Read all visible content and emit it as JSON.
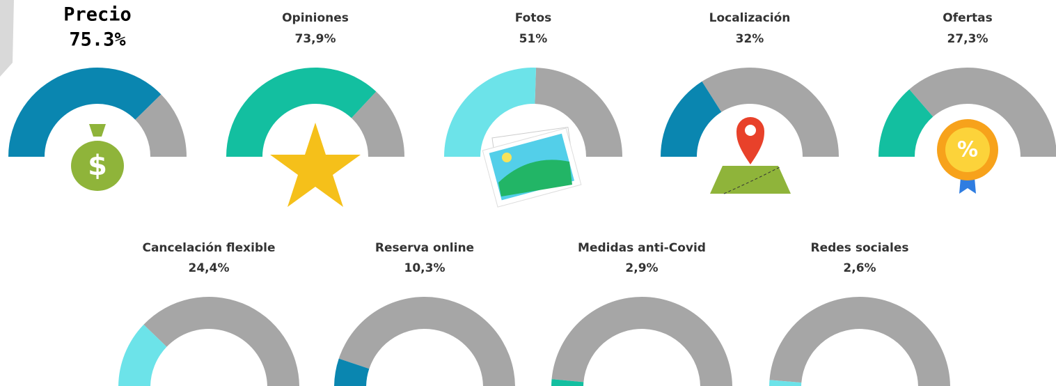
{
  "chart_data": [
    {
      "type": "gauge",
      "title": "Precio",
      "values": [
        75.3
      ],
      "value_labels": [
        "75.3%"
      ],
      "color": "#0a86b0",
      "track_color": "#a6a6a6",
      "ylim": [
        0,
        100
      ]
    },
    {
      "type": "gauge",
      "title": "Opiniones",
      "values": [
        73.9
      ],
      "value_labels": [
        "73,9%"
      ],
      "color": "#13bfa0",
      "track_color": "#a6a6a6",
      "ylim": [
        0,
        100
      ]
    },
    {
      "type": "gauge",
      "title": "Fotos",
      "values": [
        51
      ],
      "value_labels": [
        "51%"
      ],
      "color": "#6ce3e9",
      "track_color": "#a6a6a6",
      "ylim": [
        0,
        100
      ]
    },
    {
      "type": "gauge",
      "title": "Localización",
      "values": [
        32
      ],
      "value_labels": [
        "32%"
      ],
      "color": "#0a86b0",
      "track_color": "#a6a6a6",
      "ylim": [
        0,
        100
      ]
    },
    {
      "type": "gauge",
      "title": "Ofertas",
      "values": [
        27.3
      ],
      "value_labels": [
        "27,3%"
      ],
      "color": "#13bfa0",
      "track_color": "#a6a6a6",
      "ylim": [
        0,
        100
      ]
    },
    {
      "type": "gauge",
      "title": "Cancelación flexible",
      "values": [
        24.4
      ],
      "value_labels": [
        "24,4%"
      ],
      "color": "#6ce3e9",
      "track_color": "#a6a6a6",
      "ylim": [
        0,
        100
      ]
    },
    {
      "type": "gauge",
      "title": "Reserva online",
      "values": [
        10.3
      ],
      "value_labels": [
        "10,3%"
      ],
      "color": "#0a86b0",
      "track_color": "#a6a6a6",
      "ylim": [
        0,
        100
      ]
    },
    {
      "type": "gauge",
      "title": "Medidas anti-Covid",
      "values": [
        2.9
      ],
      "value_labels": [
        "2,9%"
      ],
      "color": "#13bfa0",
      "track_color": "#a6a6a6",
      "ylim": [
        0,
        100
      ]
    },
    {
      "type": "gauge",
      "title": "Redes sociales",
      "values": [
        2.6
      ],
      "value_labels": [
        "2,6%"
      ],
      "color": "#6ce3e9",
      "track_color": "#a6a6a6",
      "ylim": [
        0,
        100
      ]
    }
  ]
}
